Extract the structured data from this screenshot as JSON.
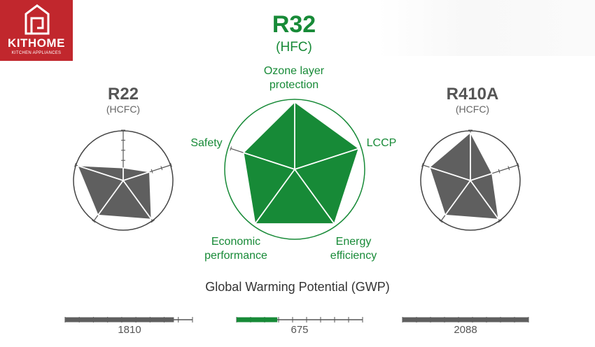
{
  "logo": {
    "name": "KITHOME",
    "tagline": "KITCHEN APPLIANCES",
    "bg_color": "#c1272d"
  },
  "chart_data": [
    {
      "type": "radar",
      "title": "R22",
      "subtitle": "(HCFC)",
      "axes": [
        "Ozone layer protection",
        "LCCP",
        "Energy efficiency",
        "Economic performance",
        "Safety"
      ],
      "values": [
        0.25,
        0.55,
        0.95,
        0.85,
        0.95
      ],
      "scale": [
        0,
        1
      ],
      "color": "#5f5f5f"
    },
    {
      "type": "radar",
      "title": "R32",
      "subtitle": "(HFC)",
      "axes": [
        "Ozone layer protection",
        "LCCP",
        "Energy efficiency",
        "Economic performance",
        "Safety"
      ],
      "values": [
        1.0,
        1.0,
        1.0,
        1.0,
        0.8
      ],
      "scale": [
        0,
        1
      ],
      "color": "#178a37",
      "axis_labels": {
        "ozone": [
          "Ozone layer",
          "protection"
        ],
        "lccp": "LCCP",
        "energy": [
          "Energy",
          "efficiency"
        ],
        "economic": [
          "Economic",
          "performance"
        ],
        "safety": "Safety"
      }
    },
    {
      "type": "radar",
      "title": "R410A",
      "subtitle": "(HCFC)",
      "axes": [
        "Ozone layer protection",
        "LCCP",
        "Energy efficiency",
        "Economic performance",
        "Safety"
      ],
      "values": [
        0.95,
        0.45,
        0.95,
        0.85,
        0.85
      ],
      "scale": [
        0,
        1
      ],
      "color": "#5f5f5f"
    },
    {
      "type": "bar",
      "title": "Global Warming Potential (GWP)",
      "categories": [
        "R22",
        "R32",
        "R410A"
      ],
      "values": [
        1810,
        675,
        2088
      ],
      "value_labels": [
        "1810",
        "675",
        "2088"
      ],
      "colors": [
        "#5f5f5f",
        "#178a37",
        "#5f5f5f"
      ]
    }
  ]
}
